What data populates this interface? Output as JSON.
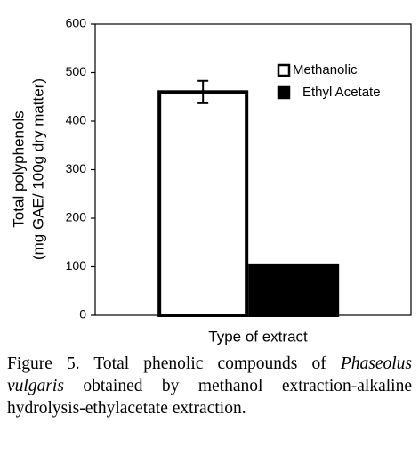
{
  "chart_data": {
    "type": "bar",
    "ylabel": [
      "Total polyphenols",
      "(mg GAE/ 100g dry matter)"
    ],
    "xlabel": "Type of extract",
    "categories": [
      null
    ],
    "series": [
      {
        "name": "Methanolic",
        "color": "#ffffff",
        "edgecolor": "#000000",
        "values": [
          460
        ],
        "errors": [
          23
        ]
      },
      {
        "name": "Ethyl Acetate",
        "color": "#000000",
        "edgecolor": "#000000",
        "values": [
          103
        ]
      }
    ],
    "ylim": [
      0,
      600
    ],
    "yticks": [
      0,
      100,
      200,
      300,
      400,
      500,
      600
    ],
    "grid": false,
    "legend": "upper right"
  },
  "caption": {
    "parts": [
      "Figure 5. Total phenolic compounds of ",
      "Phaseolus vulgaris",
      " obtained by methanol extraction-alkaline hydrolysis-ethylacetate extraction."
    ]
  }
}
